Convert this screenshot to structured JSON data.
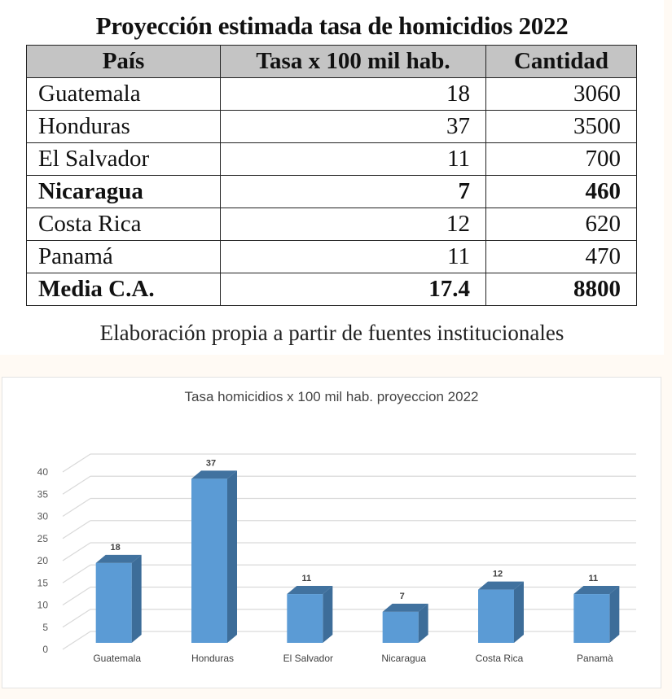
{
  "table": {
    "title": "Proyección estimada tasa de homicidios 2022",
    "headers": [
      "País",
      "Tasa x 100 mil hab.",
      "Cantidad"
    ],
    "rows": [
      {
        "pais": "Guatemala",
        "tasa": "18",
        "cantidad": "3060",
        "bold": false
      },
      {
        "pais": "Honduras",
        "tasa": "37",
        "cantidad": "3500",
        "bold": false
      },
      {
        "pais": "El Salvador",
        "tasa": "11",
        "cantidad": "700",
        "bold": false
      },
      {
        "pais": "Nicaragua",
        "tasa": "7",
        "cantidad": "460",
        "bold": true
      },
      {
        "pais": "Costa Rica",
        "tasa": "12",
        "cantidad": "620",
        "bold": false
      },
      {
        "pais": "Panamá",
        "tasa": "11",
        "cantidad": "470",
        "bold": false
      },
      {
        "pais": "Media C.A.",
        "tasa": "17.4",
        "cantidad": "8800",
        "bold": true
      }
    ],
    "caption": "Elaboración propia a partir de fuentes institucionales"
  },
  "chart_data": {
    "type": "bar",
    "title": "Tasa homicidios x 100 mil hab. proyeccion 2022",
    "categories": [
      "Guatemala",
      "Honduras",
      "El Salvador",
      "Nicaragua",
      "Costa Rica",
      "Panamà"
    ],
    "values": [
      18,
      37,
      11,
      7,
      12,
      11
    ],
    "xlabel": "",
    "ylabel": "",
    "ylim": [
      0,
      40
    ],
    "yticks": [
      0,
      5,
      10,
      15,
      20,
      25,
      30,
      35,
      40
    ],
    "grid": true,
    "style": "3d-column",
    "data_labels": true,
    "legend": null,
    "colors": {
      "bar_front": "#5b9bd5",
      "bar_side": "#3d6d99",
      "bar_top": "#41729f",
      "grid": "#d9d9d9"
    }
  }
}
